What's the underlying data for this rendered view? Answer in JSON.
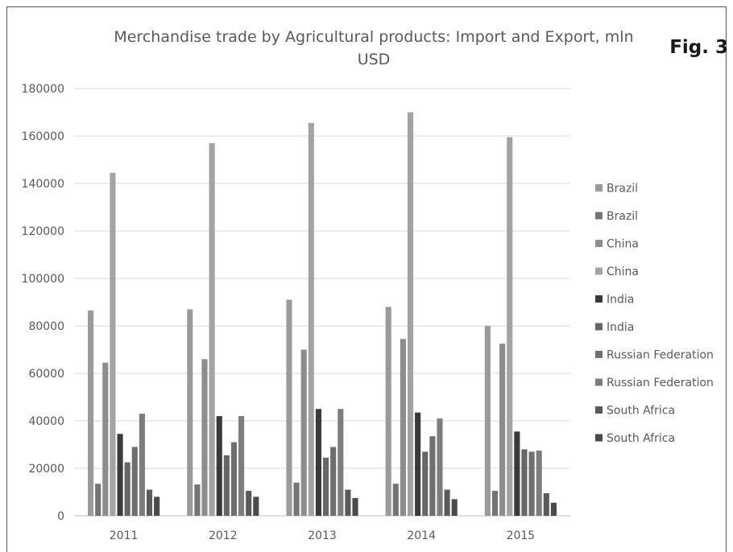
{
  "figure_label": "Fig. 3",
  "chart_data": {
    "type": "bar",
    "title": "Merchandise trade by Agricultural products: Import and Export, mln USD",
    "title_lines": [
      "Merchandise trade by Agricultural products: Import and Export, mln",
      "USD"
    ],
    "xlabel": "",
    "ylabel": "",
    "ylim": [
      0,
      180000
    ],
    "yticks": [
      0,
      20000,
      40000,
      60000,
      80000,
      100000,
      120000,
      140000,
      160000,
      180000
    ],
    "categories": [
      "2011",
      "2012",
      "2013",
      "2014",
      "2015"
    ],
    "grid": true,
    "legend_position": "right",
    "series": [
      {
        "name": "Brazil",
        "color": "#9a9a9a",
        "values": [
          86500,
          87000,
          91000,
          88000,
          80000
        ]
      },
      {
        "name": "Brazil",
        "color": "#747474",
        "values": [
          13500,
          13200,
          14000,
          13500,
          10500
        ]
      },
      {
        "name": "China",
        "color": "#8d8d8d",
        "values": [
          64500,
          66000,
          70000,
          74500,
          72500
        ]
      },
      {
        "name": "China",
        "color": "#a3a3a3",
        "values": [
          144500,
          157000,
          165500,
          170000,
          159500
        ]
      },
      {
        "name": "India",
        "color": "#3a3a3a",
        "values": [
          34500,
          42000,
          45000,
          43500,
          35500
        ]
      },
      {
        "name": "India",
        "color": "#666666",
        "values": [
          22500,
          25500,
          24500,
          27000,
          28000
        ]
      },
      {
        "name": "Russian Federation",
        "color": "#6f6f6f",
        "values": [
          29000,
          31000,
          29000,
          33500,
          27000
        ]
      },
      {
        "name": "Russian Federation",
        "color": "#7d7d7d",
        "values": [
          43000,
          42000,
          45000,
          41000,
          27500
        ]
      },
      {
        "name": "South Africa",
        "color": "#5a5a5a",
        "values": [
          11000,
          10500,
          11000,
          11000,
          9500
        ]
      },
      {
        "name": "South Africa",
        "color": "#4a4a4a",
        "values": [
          8000,
          8000,
          7500,
          7000,
          5500
        ]
      }
    ]
  }
}
